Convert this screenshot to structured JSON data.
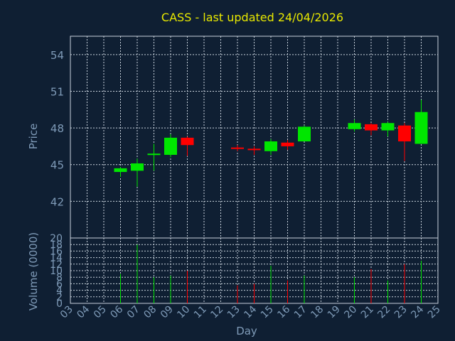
{
  "chart_data": {
    "type": "candlestick",
    "title": "CASS - last updated 24/04/2026",
    "xlabel": "Day",
    "price_axis": {
      "label": "Price",
      "ylim": [
        39,
        55.5
      ],
      "ticks": [
        42,
        45,
        48,
        51,
        54
      ]
    },
    "volume_axis": {
      "label": "Volume (0000)",
      "ylim": [
        0,
        20
      ],
      "ticks": [
        0,
        2,
        4,
        6,
        8,
        10,
        12,
        14,
        16,
        18,
        20
      ]
    },
    "x_ticks": [
      "03",
      "04",
      "05",
      "06",
      "07",
      "08",
      "09",
      "10",
      "11",
      "12",
      "13",
      "14",
      "15",
      "16",
      "17",
      "18",
      "19",
      "20",
      "21",
      "22",
      "23",
      "24",
      "25"
    ],
    "grid": true,
    "colors": {
      "up": "#00e600",
      "down": "#ff0000",
      "background": "#0f1f33",
      "title": "#e8e800",
      "axis_text": "#7f9bb8"
    },
    "candles": [
      {
        "day": "06",
        "open": 44.4,
        "close": 44.7,
        "high": 44.8,
        "low": 44.0,
        "volume": 9
      },
      {
        "day": "07",
        "open": 44.5,
        "close": 45.1,
        "high": 45.5,
        "low": 43.2,
        "volume": 18
      },
      {
        "day": "08",
        "open": 45.8,
        "close": 45.9,
        "high": 46.7,
        "low": 44.5,
        "volume": 8
      },
      {
        "day": "09",
        "open": 45.8,
        "close": 47.2,
        "high": 47.5,
        "low": 45.6,
        "volume": 8.5
      },
      {
        "day": "10",
        "open": 47.2,
        "close": 46.6,
        "high": 47.3,
        "low": 45.7,
        "volume": 10
      },
      {
        "day": "13",
        "open": 46.4,
        "close": 46.3,
        "high": 46.6,
        "low": 46.1,
        "volume": 5.5
      },
      {
        "day": "14",
        "open": 46.3,
        "close": 46.2,
        "high": 46.5,
        "low": 45.8,
        "volume": 6
      },
      {
        "day": "15",
        "open": 46.1,
        "close": 46.9,
        "high": 47.1,
        "low": 45.8,
        "volume": 11.5
      },
      {
        "day": "16",
        "open": 46.8,
        "close": 46.5,
        "high": 47.0,
        "low": 46.2,
        "volume": 7
      },
      {
        "day": "17",
        "open": 46.9,
        "close": 48.1,
        "high": 48.2,
        "low": 46.9,
        "volume": 8.5
      },
      {
        "day": "20",
        "open": 47.9,
        "close": 48.4,
        "high": 48.7,
        "low": 47.7,
        "volume": 8
      },
      {
        "day": "21",
        "open": 48.3,
        "close": 47.8,
        "high": 48.4,
        "low": 47.4,
        "volume": 10.5
      },
      {
        "day": "22",
        "open": 47.8,
        "close": 48.4,
        "high": 48.5,
        "low": 47.3,
        "volume": 7
      },
      {
        "day": "23",
        "open": 48.2,
        "close": 46.9,
        "high": 48.4,
        "low": 45.3,
        "volume": 12
      },
      {
        "day": "24",
        "open": 46.7,
        "close": 49.3,
        "high": 50.3,
        "low": 46.7,
        "volume": 13
      }
    ]
  }
}
